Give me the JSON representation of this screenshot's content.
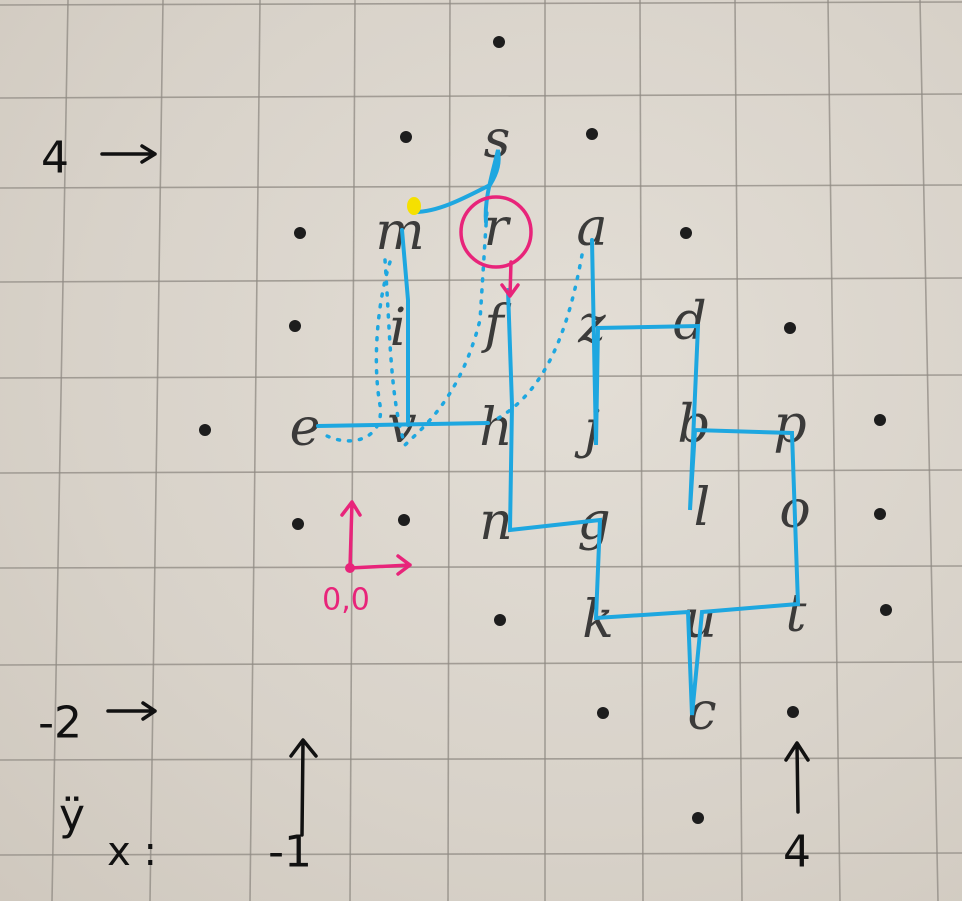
{
  "axis_markers": {
    "top_y": "4",
    "bottom_y": "-2",
    "y_label": "ÿ",
    "x_label": "x :",
    "left_x": "-1",
    "right_x": "4"
  },
  "origin_label": "0,0",
  "letters": [
    "s",
    "m",
    "r",
    "a",
    "i",
    "f",
    "z",
    "d",
    "e",
    "v",
    "h",
    "j",
    "b",
    "p",
    "n",
    "g",
    "l",
    "o",
    "k",
    "u",
    "t",
    "c"
  ],
  "colors": {
    "paper": "#dcd7cf",
    "grid": "#8f8a83",
    "path": "#1ea7e0",
    "highlight": "#e8247a",
    "start_marker": "#f5e000",
    "ink": "#111111"
  }
}
